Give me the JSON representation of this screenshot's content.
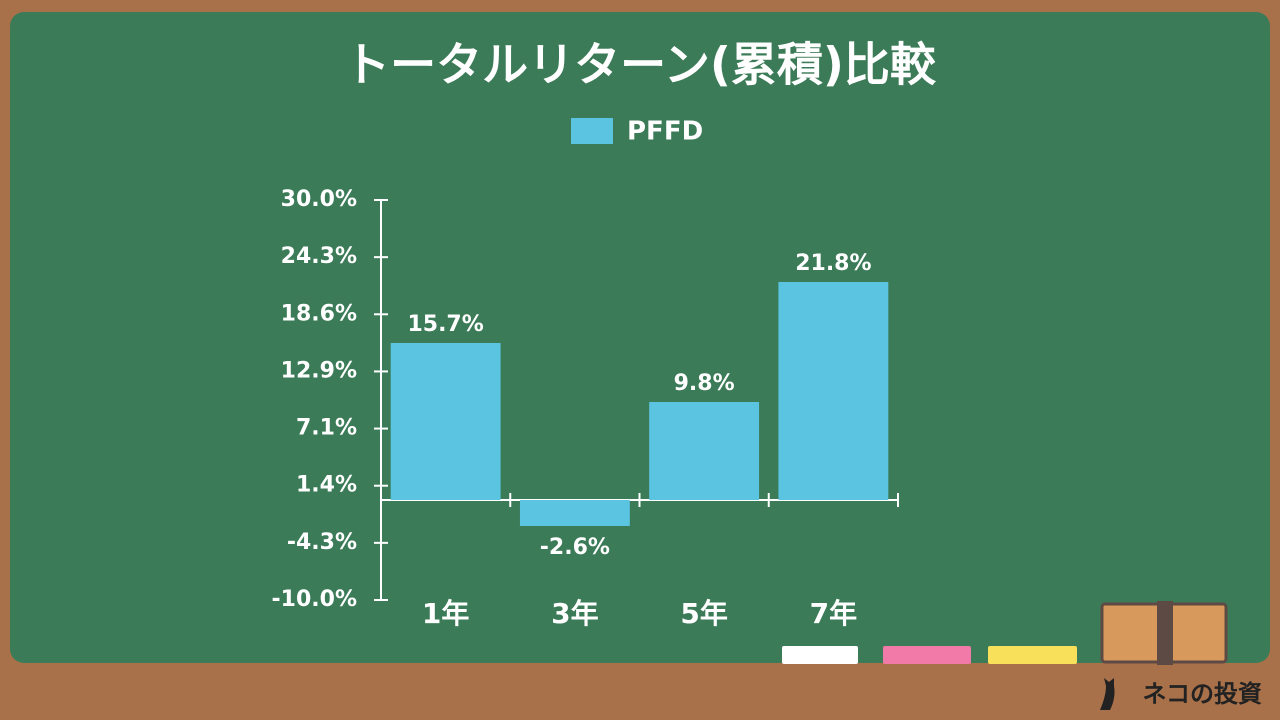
{
  "chart_data": {
    "type": "bar",
    "title": "トータルリターン(累積)比較",
    "categories": [
      "1年",
      "3年",
      "5年",
      "7年"
    ],
    "series": [
      {
        "name": "PFFD",
        "color": "#5bc4e0",
        "values": [
          15.7,
          -2.6,
          9.8,
          21.8
        ],
        "value_labels": [
          "15.7%",
          "-2.6%",
          "9.8%",
          "21.8%"
        ]
      }
    ],
    "ylim": [
      -10,
      30
    ],
    "yticks": [
      {
        "value": -10,
        "label": "-10.0%"
      },
      {
        "value": -4.2857,
        "label": "-4.3%"
      },
      {
        "value": 1.4286,
        "label": "1.4%"
      },
      {
        "value": 7.1429,
        "label": "7.1%"
      },
      {
        "value": 12.8571,
        "label": "12.9%"
      },
      {
        "value": 18.5714,
        "label": "18.6%"
      },
      {
        "value": 24.2857,
        "label": "24.3%"
      },
      {
        "value": 30,
        "label": "30.0%"
      }
    ],
    "legend": "top"
  },
  "footer": {
    "brand": "ネコの投資"
  }
}
